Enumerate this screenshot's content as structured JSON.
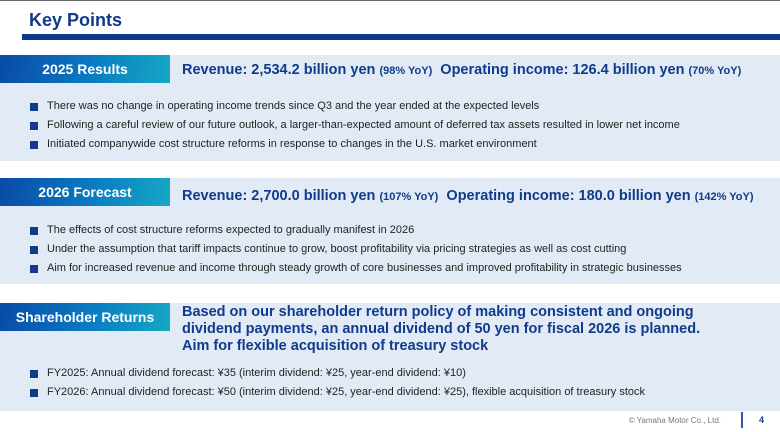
{
  "title": "Key Points",
  "sections": [
    {
      "label": "2025 Results",
      "rev": "Revenue: 2,534.2 billion yen",
      "rev_yoy": "(98% YoY)",
      "op": "Operating income: 126.4 billion yen",
      "op_yoy": "(70% YoY)",
      "bullets": [
        "There was no change in operating income trends since Q3 and the year ended at the expected levels",
        "Following a careful review of our future outlook, a larger-than-expected amount of deferred tax assets resulted in lower net income",
        "Initiated companywide cost structure reforms in response to changes in the U.S. market environment"
      ]
    },
    {
      "label": "2026 Forecast",
      "rev": "Revenue: 2,700.0 billion yen",
      "rev_yoy": "(107% YoY)",
      "op": "Operating income: 180.0 billion yen",
      "op_yoy": "(142% YoY)",
      "bullets": [
        "The effects of cost structure reforms expected to gradually manifest in 2026",
        "Under the assumption that tariff impacts continue to grow, boost profitability via pricing strategies as well as cost cutting",
        "Aim for increased revenue and income through steady growth of core businesses and improved profitability in strategic businesses"
      ]
    },
    {
      "label": "Shareholder Returns",
      "lines": [
        "Based on our shareholder return policy of making consistent and ongoing",
        "dividend payments, an annual dividend of 50 yen for fiscal 2026 is planned.",
        "Aim for flexible acquisition of treasury stock"
      ],
      "bullets": [
        "FY2025: Annual dividend forecast: ¥35 (interim dividend: ¥25, year-end dividend: ¥10)",
        "FY2026: Annual dividend forecast: ¥50 (interim dividend: ¥25, year-end dividend: ¥25), flexible acquisition of treasury stock"
      ]
    }
  ],
  "footer": "© Yamaha Motor Co., Ltd.",
  "page": "4"
}
